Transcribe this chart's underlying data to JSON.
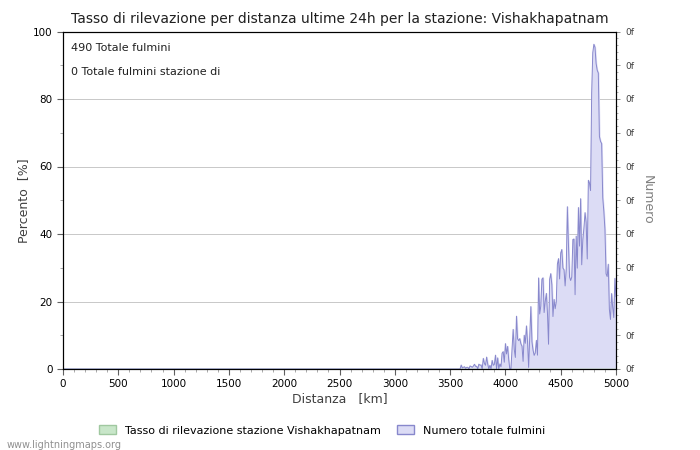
{
  "title": "Tasso di rilevazione per distanza ultime 24h per la stazione: Vishakhapatnam",
  "xlabel": "Distanza   [km]",
  "ylabel_left": "Percento  [%]",
  "ylabel_right": "Numero",
  "annotation_line1": "490 Totale fulmini",
  "annotation_line2": "0 Totale fulmini stazione di",
  "xlim": [
    0,
    5000
  ],
  "ylim": [
    0,
    100
  ],
  "xticks": [
    0,
    500,
    1000,
    1500,
    2000,
    2500,
    3000,
    3500,
    4000,
    4500,
    5000
  ],
  "yticks_left": [
    0,
    20,
    40,
    60,
    80,
    100
  ],
  "legend_label1": "Tasso di rilevazione stazione Vishakhapatnam",
  "legend_label2": "Numero totale fulmini",
  "fill_color_green": "#c8e6c9",
  "fill_color_blue": "#dcdcf5",
  "line_color": "#8888cc",
  "watermark": "www.lightningmaps.org",
  "bg_color": "#ffffff",
  "grid_color": "#c8c8c8"
}
